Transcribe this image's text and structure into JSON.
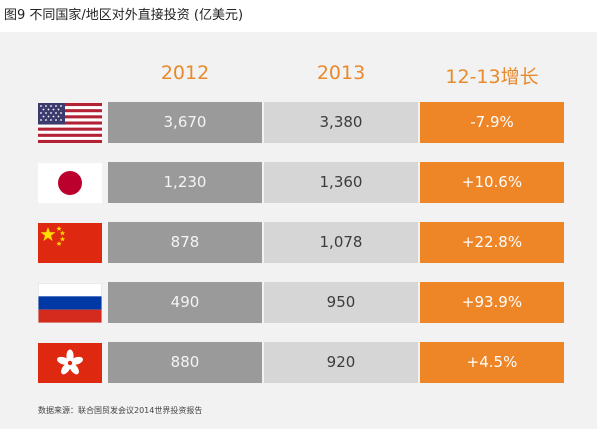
{
  "figure": {
    "caption": "图9 不同国家/地区对外直接投资 (亿美元)",
    "source": "数据来源：联合国贸发会议2014世界投资报告"
  },
  "colors": {
    "col_2012": "#9a9a9a",
    "col_2013": "#d6d6d6",
    "col_growth": "#ee8526",
    "header_text": "#e88a2c"
  },
  "chart_data": {
    "type": "table",
    "title": "图9 不同国家/地区对外直接投资 (亿美元)",
    "columns": [
      "2012",
      "2013",
      "12-13增长"
    ],
    "rows": [
      {
        "flag": "usa-flag-icon",
        "v2012": "3,670",
        "v2013": "3,380",
        "growth": "-7.9%"
      },
      {
        "flag": "japan-flag-icon",
        "v2012": "1,230",
        "v2013": "1,360",
        "growth": "+10.6%"
      },
      {
        "flag": "china-flag-icon",
        "v2012": "878",
        "v2013": "1,078",
        "growth": "+22.8%"
      },
      {
        "flag": "russia-flag-icon",
        "v2012": "490",
        "v2013": "950",
        "growth": "+93.9%"
      },
      {
        "flag": "hongkong-flag-icon",
        "v2012": "880",
        "v2013": "920",
        "growth": "+4.5%"
      }
    ],
    "source": "数据来源：联合国贸发会议2014世界投资报告"
  }
}
